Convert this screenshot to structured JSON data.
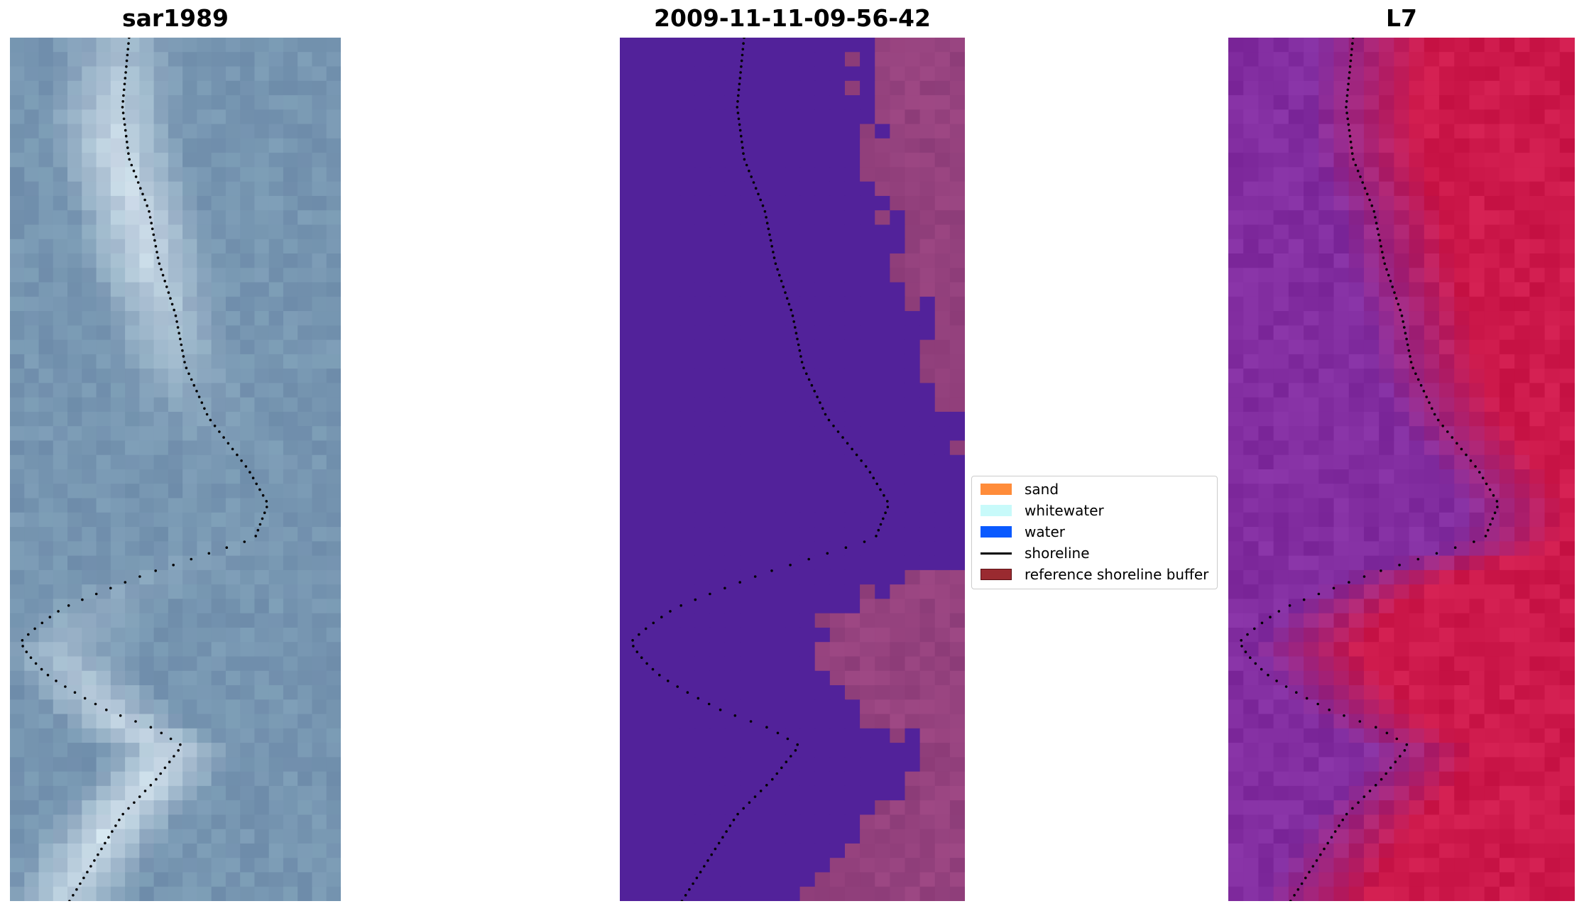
{
  "panels": [
    {
      "title": "sar1989"
    },
    {
      "title": "2009-11-11-09-56-42"
    },
    {
      "title": "L7"
    }
  ],
  "legend": {
    "items": [
      {
        "label": "sand",
        "color": "#ff8c3a",
        "kind": "patch"
      },
      {
        "label": "whitewater",
        "color": "#c8fafa",
        "kind": "patch"
      },
      {
        "label": "water",
        "color": "#0a5aff",
        "kind": "patch"
      },
      {
        "label": "shoreline",
        "color": "#000000",
        "kind": "line"
      },
      {
        "label": "reference shoreline buffer",
        "color": "#9a2a30",
        "kind": "patch"
      }
    ]
  },
  "colors": {
    "sar_base": "#6f8fae",
    "classified_water": "#52229a",
    "classified_sand": "#8a3f7a",
    "l7_water": "#8a2aa0",
    "l7_land": "#c8174a"
  }
}
